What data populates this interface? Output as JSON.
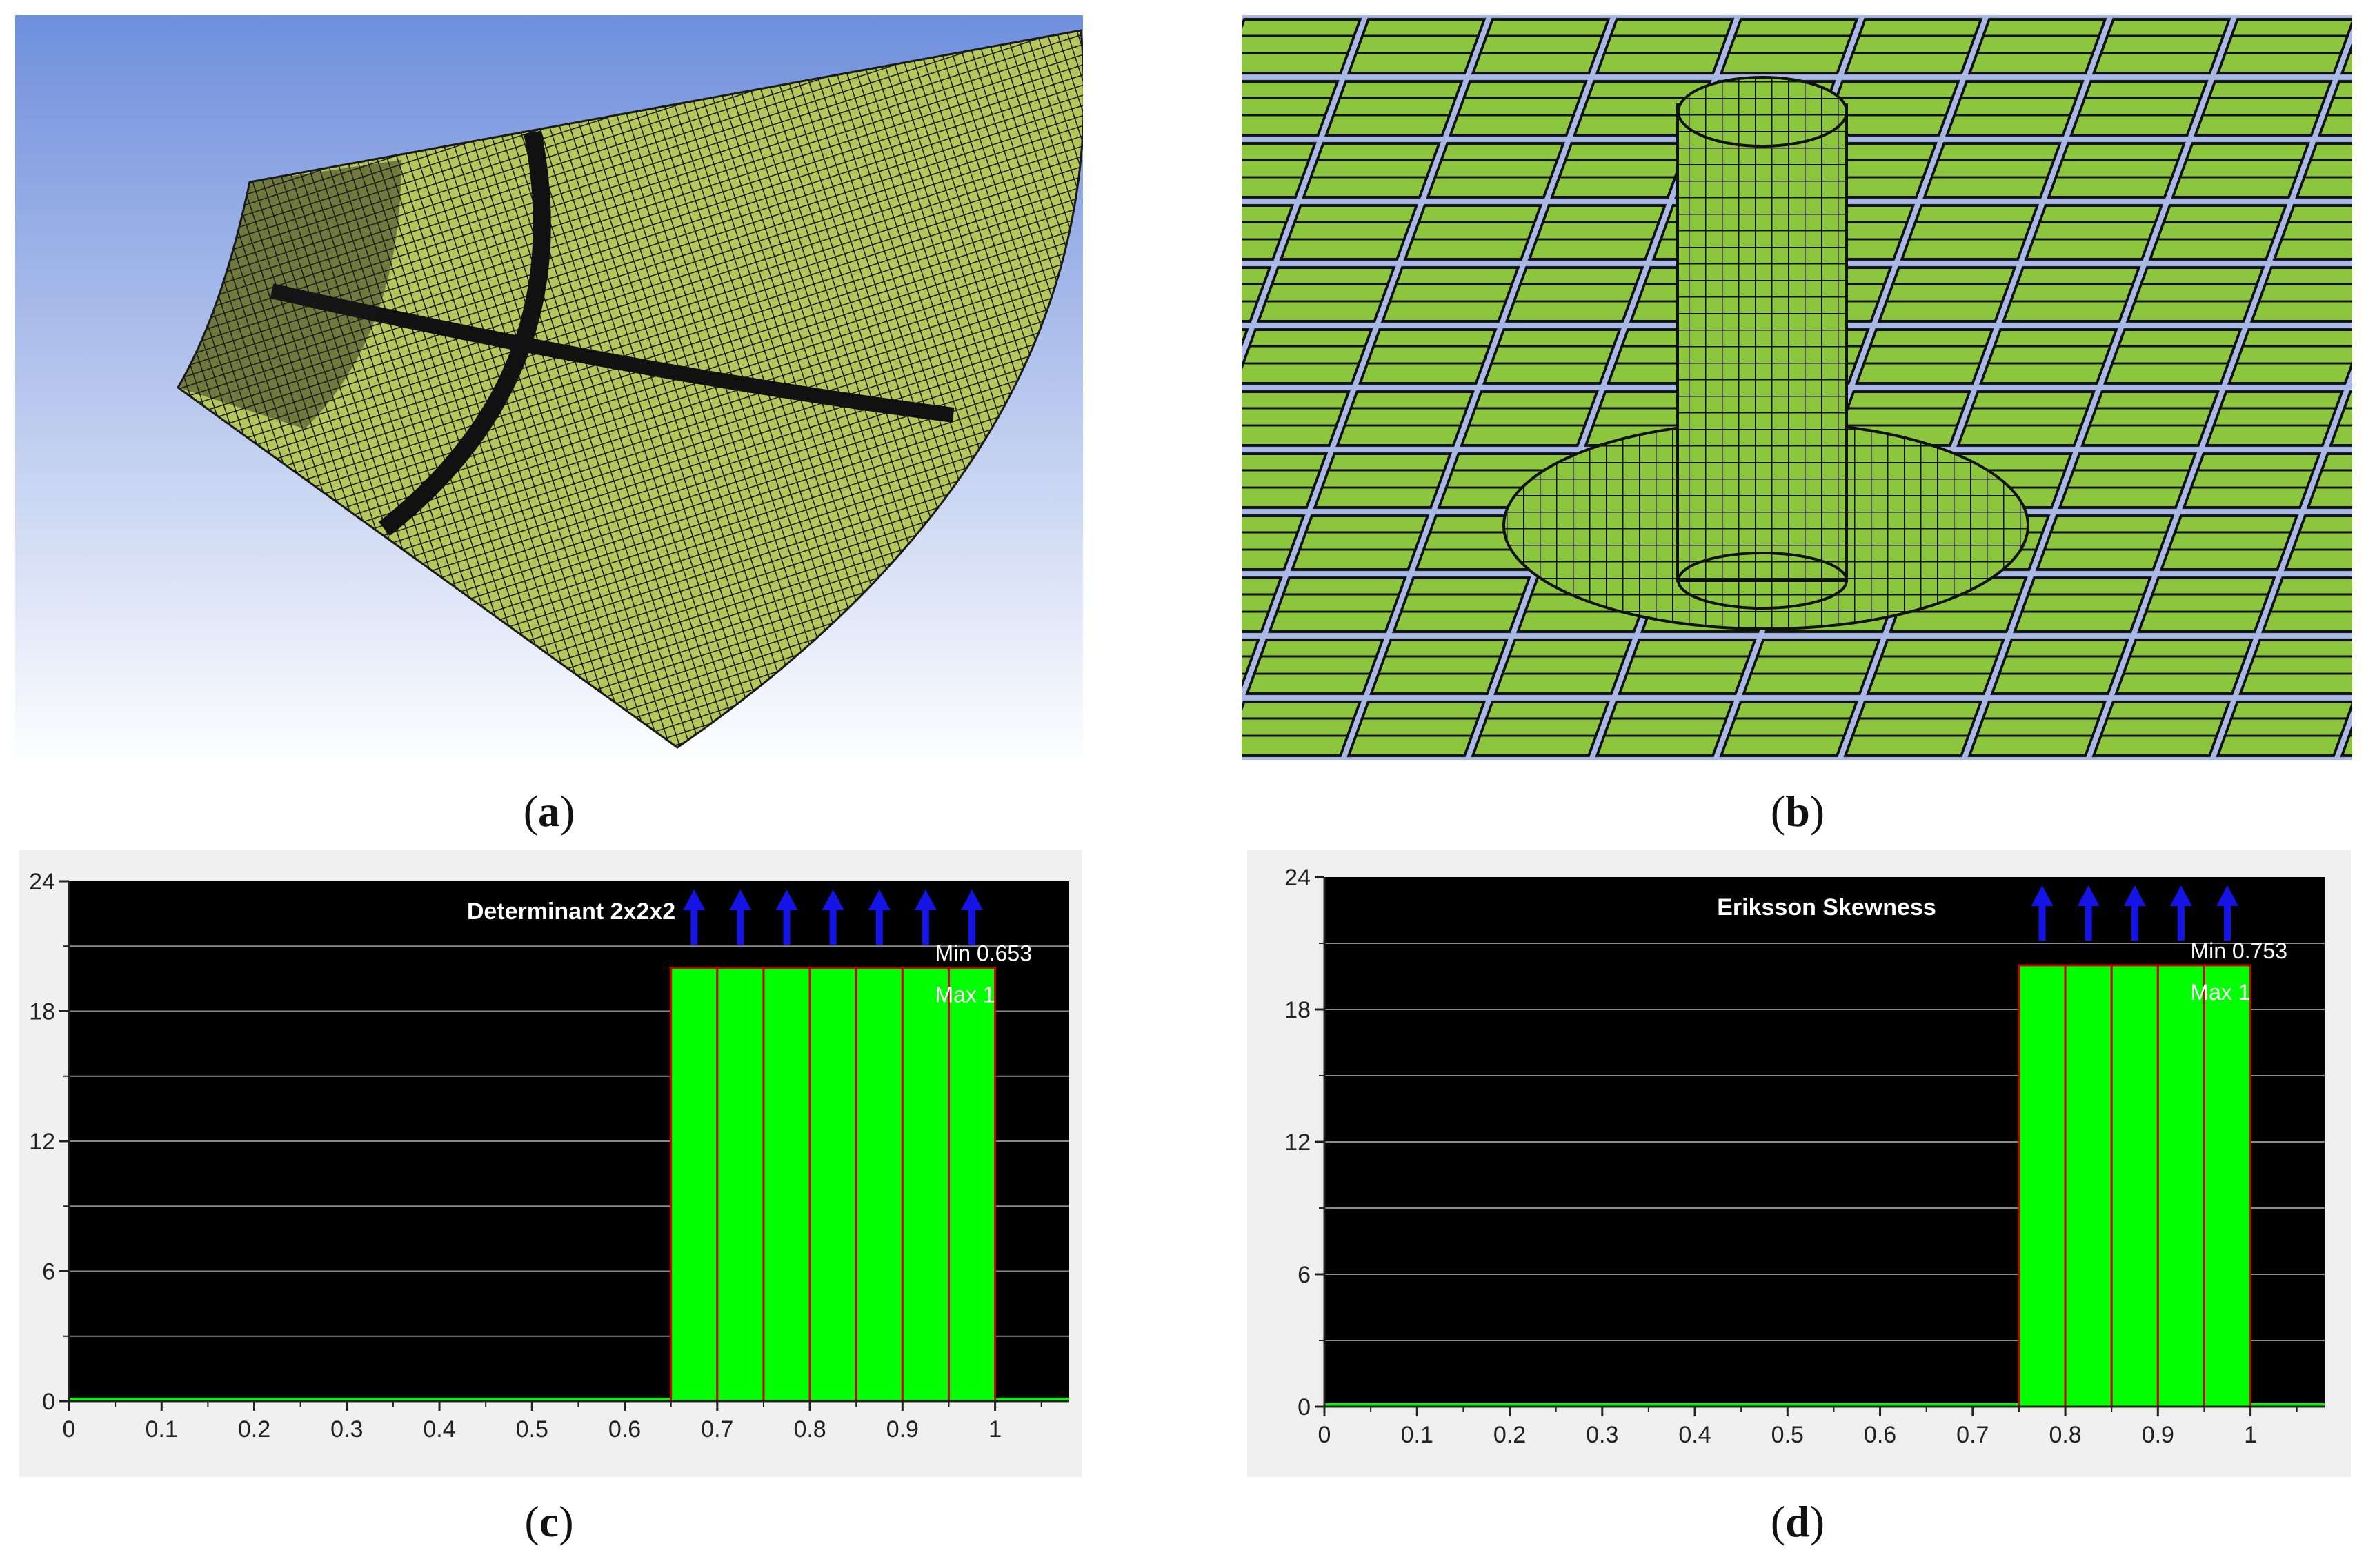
{
  "captions": [
    {
      "letter": "a"
    },
    {
      "letter": "b"
    },
    {
      "letter": "c"
    },
    {
      "letter": "d"
    }
  ],
  "mesh_a": {
    "background_top": "#6f8fdc",
    "background_bottom": "#ffffff",
    "mesh_color": "#b5c75a",
    "line_color": "#1a1a1a"
  },
  "mesh_b": {
    "block_color": "#8cc63f",
    "gap_color": "#a9b9e6",
    "line_color": "#111111"
  },
  "chart_data": [
    {
      "type": "bar",
      "title": "Determinant 2x2x2",
      "annotations": [
        "Min 0.653",
        "Max 1"
      ],
      "xlim": [
        0,
        1.08
      ],
      "ylim": [
        0,
        24
      ],
      "xticks": [
        0,
        0.1,
        0.2,
        0.3,
        0.4,
        0.5,
        0.6,
        0.7,
        0.8,
        0.9,
        1
      ],
      "xtick_labels": [
        "0",
        "0.1",
        "0.2",
        "0.3",
        "0.4",
        "0.5",
        "0.6",
        "0.7",
        "0.8",
        "0.9",
        "1"
      ],
      "yticks": [
        0,
        6,
        12,
        18,
        24
      ],
      "ytick_labels": [
        "0",
        "6",
        "12",
        "18",
        "24"
      ],
      "bins": [
        [
          0.65,
          0.7
        ],
        [
          0.7,
          0.75
        ],
        [
          0.75,
          0.8
        ],
        [
          0.8,
          0.85
        ],
        [
          0.85,
          0.9
        ],
        [
          0.9,
          0.95
        ],
        [
          0.95,
          1.0
        ]
      ],
      "values": [
        20,
        20,
        20,
        20,
        20,
        20,
        20
      ],
      "arrow_x": [
        0.675,
        0.725,
        0.775,
        0.825,
        0.875,
        0.925,
        0.975
      ],
      "bar_color": "#00ff00",
      "bar_edge": "#cc0000",
      "plot_bg": "#000000",
      "arrow_color": "#1414e6"
    },
    {
      "type": "bar",
      "title": "Eriksson Skewness",
      "annotations": [
        "Min 0.753",
        "Max 1"
      ],
      "xlim": [
        0,
        1.08
      ],
      "ylim": [
        0,
        24
      ],
      "xticks": [
        0,
        0.1,
        0.2,
        0.3,
        0.4,
        0.5,
        0.6,
        0.7,
        0.8,
        0.9,
        1
      ],
      "xtick_labels": [
        "0",
        "0.1",
        "0.2",
        "0.3",
        "0.4",
        "0.5",
        "0.6",
        "0.7",
        "0.8",
        "0.9",
        "1"
      ],
      "yticks": [
        0,
        6,
        12,
        18,
        24
      ],
      "ytick_labels": [
        "0",
        "6",
        "12",
        "18",
        "24"
      ],
      "bins": [
        [
          0.75,
          0.8
        ],
        [
          0.8,
          0.85
        ],
        [
          0.85,
          0.9
        ],
        [
          0.9,
          0.95
        ],
        [
          0.95,
          1.0
        ]
      ],
      "values": [
        20,
        20,
        20,
        20,
        20
      ],
      "arrow_x": [
        0.775,
        0.825,
        0.875,
        0.925,
        0.975
      ],
      "bar_color": "#00ff00",
      "bar_edge": "#cc0000",
      "plot_bg": "#000000",
      "arrow_color": "#1414e6"
    }
  ]
}
